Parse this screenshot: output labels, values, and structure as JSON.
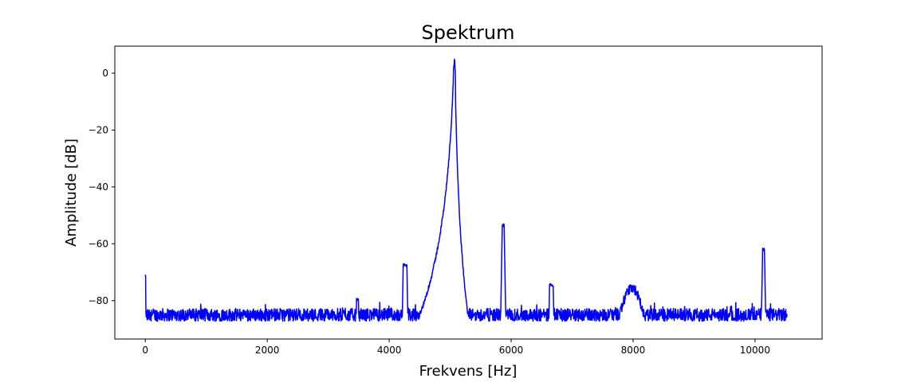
{
  "chart_data": {
    "type": "line",
    "title": "Spektrum",
    "xlabel": "Frekvens [Hz]",
    "ylabel": "Amplitude [dB]",
    "xlim": [
      -500,
      11100
    ],
    "ylim": [
      -93.5,
      9.5
    ],
    "xticks": [
      0,
      2000,
      4000,
      6000,
      8000,
      10000
    ],
    "yticks": [
      0,
      -20,
      -40,
      -60,
      -80
    ],
    "grid": false,
    "series": [
      {
        "color": "#0000ff",
        "noise_floor_db": -85,
        "x_max": 10525,
        "peaks": [
          {
            "x": 0,
            "y": -71,
            "width_hz": 8,
            "shape": "spike"
          },
          {
            "x": 3480,
            "y": -79.5,
            "width_hz": 15,
            "shape": "spike"
          },
          {
            "x": 4260,
            "y": -67.5,
            "width_hz": 60,
            "shape": "plateau"
          },
          {
            "x": 5070,
            "y": 4.7,
            "width_hz": 30,
            "shape": "main"
          },
          {
            "x": 5870,
            "y": -53.5,
            "width_hz": 30,
            "shape": "plateau"
          },
          {
            "x": 6660,
            "y": -74.5,
            "width_hz": 60,
            "shape": "plateau"
          },
          {
            "x": 7980,
            "y": -75.5,
            "width_hz": 400,
            "shape": "bump"
          },
          {
            "x": 10140,
            "y": -62,
            "width_hz": 30,
            "shape": "plateau"
          }
        ]
      }
    ]
  }
}
